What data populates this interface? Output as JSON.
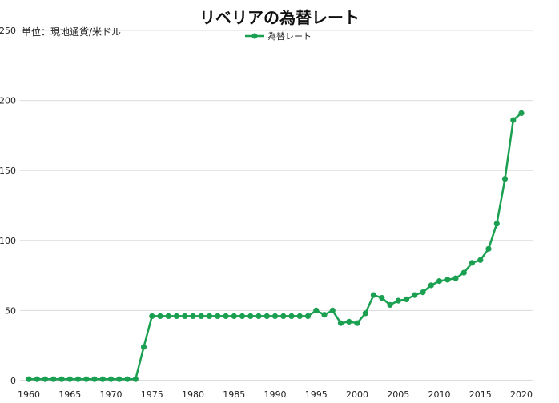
{
  "chart_data": {
    "type": "line",
    "title": "リベリアの為替レート",
    "unit_label": "単位：現地通貨/米ドル",
    "legend": {
      "position": "top-center"
    },
    "grid": true,
    "ylim": [
      0,
      250
    ],
    "yticks": [
      0,
      50,
      100,
      150,
      200,
      250
    ],
    "xticks": [
      1960,
      1965,
      1970,
      1975,
      1980,
      1985,
      1990,
      1995,
      2000,
      2005,
      2010,
      2015,
      2020
    ],
    "series": [
      {
        "name": "為替レート",
        "color": "#1aa050",
        "x": [
          1960,
          1961,
          1962,
          1963,
          1964,
          1965,
          1966,
          1967,
          1968,
          1969,
          1970,
          1971,
          1972,
          1973,
          1974,
          1975,
          1976,
          1977,
          1978,
          1979,
          1980,
          1981,
          1982,
          1983,
          1984,
          1985,
          1986,
          1987,
          1988,
          1989,
          1990,
          1991,
          1992,
          1993,
          1994,
          1995,
          1996,
          1997,
          1998,
          1999,
          2000,
          2001,
          2002,
          2003,
          2004,
          2005,
          2006,
          2007,
          2008,
          2009,
          2010,
          2011,
          2012,
          2013,
          2014,
          2015,
          2016,
          2017,
          2018,
          2019,
          2020
        ],
        "values": [
          1,
          1,
          1,
          1,
          1,
          1,
          1,
          1,
          1,
          1,
          1,
          1,
          1,
          1,
          24,
          46,
          46,
          46,
          46,
          46,
          46,
          46,
          46,
          46,
          46,
          46,
          46,
          46,
          46,
          46,
          46,
          46,
          46,
          46,
          46,
          50,
          47,
          50,
          41,
          42,
          41,
          48,
          61,
          59,
          54,
          57,
          58,
          61,
          63,
          68,
          71,
          72,
          73,
          77,
          84,
          86,
          94,
          112,
          144,
          186,
          191
        ]
      }
    ]
  }
}
